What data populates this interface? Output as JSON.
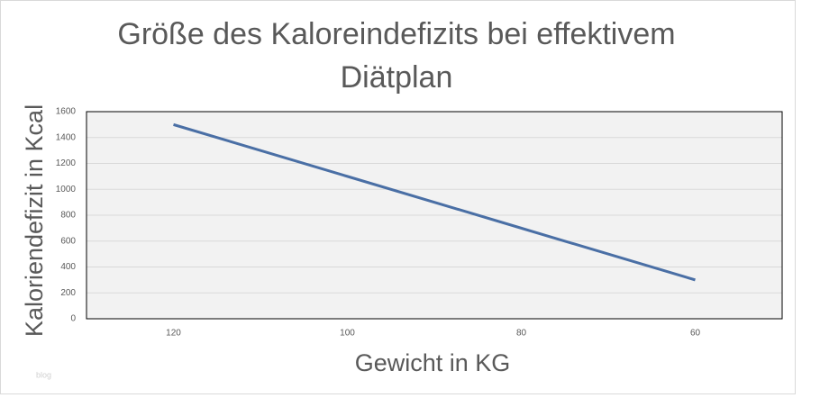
{
  "chart_data": {
    "type": "line",
    "title": "Größe des Kaloreindefizits bei effektivem Diätplan",
    "x_label": "Gewicht in KG",
    "y_label": "Kaloriendefizit in Kcal",
    "watermark": "blog",
    "categories": [
      "120",
      "100",
      "80",
      "60"
    ],
    "series": [
      {
        "name": "Kaloriendefizit",
        "color": "#4a6fa5",
        "values": [
          1500,
          1100,
          700,
          300
        ]
      }
    ],
    "ylim": [
      0,
      1600
    ],
    "yticks": [
      0,
      200,
      400,
      600,
      800,
      1000,
      1200,
      1400,
      1600
    ],
    "grid": true
  }
}
